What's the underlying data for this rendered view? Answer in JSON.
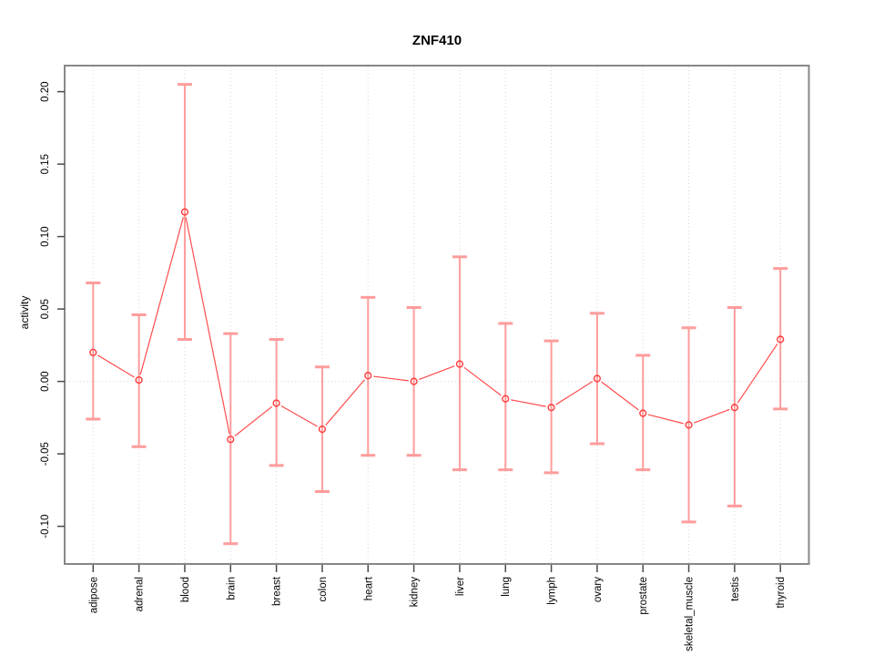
{
  "title": "ZNF410",
  "chart_data": {
    "type": "scatter",
    "title": "ZNF410",
    "xlabel": "",
    "ylabel": "activity",
    "legend": "none",
    "grid": "dotted vertical gridline per category; dotted horizontal line at y=0",
    "ylim": [
      -0.126,
      0.218
    ],
    "yticks": [
      {
        "value": -0.1,
        "label": "-0.10"
      },
      {
        "value": -0.05,
        "label": "-0.05"
      },
      {
        "value": 0.0,
        "label": "0.00"
      },
      {
        "value": 0.05,
        "label": "0.05"
      },
      {
        "value": 0.1,
        "label": "0.10"
      },
      {
        "value": 0.15,
        "label": "0.15"
      },
      {
        "value": 0.2,
        "label": "0.20"
      }
    ],
    "categories": [
      "adipose",
      "adrenal",
      "blood",
      "brain",
      "breast",
      "colon",
      "heart",
      "kidney",
      "liver",
      "lung",
      "lymph",
      "ovary",
      "prostate",
      "skeletal_muscle",
      "testis",
      "thyroid"
    ],
    "series": [
      {
        "name": "activity",
        "marker": "open-circle",
        "values": [
          0.02,
          0.001,
          0.117,
          -0.04,
          -0.015,
          -0.033,
          0.004,
          0.0,
          0.012,
          -0.012,
          -0.018,
          0.002,
          -0.022,
          -0.03,
          -0.018,
          0.029
        ],
        "upper": [
          0.068,
          0.046,
          0.205,
          0.033,
          0.029,
          0.01,
          0.058,
          0.051,
          0.086,
          0.04,
          0.028,
          0.047,
          0.018,
          0.037,
          0.051,
          0.078
        ],
        "lower": [
          -0.026,
          -0.045,
          0.029,
          -0.112,
          -0.058,
          -0.076,
          -0.051,
          -0.051,
          -0.061,
          -0.061,
          -0.063,
          -0.043,
          -0.061,
          -0.097,
          -0.086,
          -0.019
        ]
      }
    ],
    "colors": {
      "point": "#ff3b3b",
      "line": "#ff4d4d",
      "error_bar": "#ff9c9c",
      "gridline": "#d6d6d6",
      "zero_line": "#d6d6d6",
      "box_border": "#878787",
      "tick": "#4a4a4a",
      "text": "#000000",
      "background": "#ffffff"
    }
  }
}
